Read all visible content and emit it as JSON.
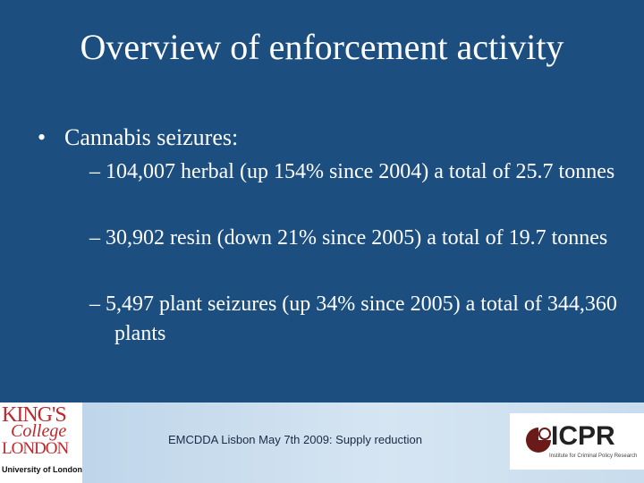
{
  "header": {
    "title": "Overview of enforcement activity"
  },
  "bullets": [
    {
      "text": "Cannabis seizures:",
      "sub": [
        "104,007 herbal (up 154% since 2004)  a total of 25.7 tonnes",
        "30,902 resin (down 21% since 2005) a total of 19.7 tonnes",
        "5,497 plant seizures (up 34% since 2005) a total of 344,360 plants"
      ]
    }
  ],
  "footer": {
    "text": "EMCDDA Lisbon May 7th 2009: Supply reduction",
    "logo_left": {
      "line1": "KING'S",
      "line2": "College",
      "line3": "LONDON",
      "line4": "University of London"
    },
    "logo_right": {
      "name": "ICPR",
      "tagline": "Institute for Criminal Policy Research"
    }
  }
}
